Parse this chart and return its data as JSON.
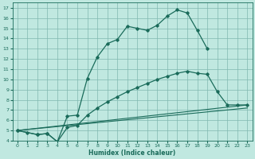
{
  "xlabel": "Humidex (Indice chaleur)",
  "xlim": [
    -0.5,
    23.5
  ],
  "ylim": [
    4,
    17.5
  ],
  "xticks": [
    0,
    1,
    2,
    3,
    4,
    5,
    6,
    7,
    8,
    9,
    10,
    11,
    12,
    13,
    14,
    15,
    16,
    17,
    18,
    19,
    20,
    21,
    22,
    23
  ],
  "yticks": [
    4,
    5,
    6,
    7,
    8,
    9,
    10,
    11,
    12,
    13,
    14,
    15,
    16,
    17
  ],
  "bg_color": "#c0e8e0",
  "grid_color": "#80b8b0",
  "line_color": "#1a6b5a",
  "line1_x": [
    0,
    1,
    2,
    3,
    4,
    5,
    6,
    7,
    8,
    9,
    10,
    11,
    12,
    13,
    14,
    15,
    16,
    17,
    18,
    19
  ],
  "line1_y": [
    5.0,
    4.8,
    4.6,
    4.7,
    3.9,
    6.4,
    6.5,
    10.1,
    12.2,
    13.5,
    13.9,
    15.2,
    15.0,
    14.8,
    15.3,
    16.2,
    16.8,
    16.5,
    14.8,
    13.0
  ],
  "line2_x": [
    0,
    2,
    3,
    4,
    5,
    6,
    7,
    8,
    9,
    10,
    11,
    12,
    13,
    14,
    15,
    16,
    17,
    18,
    19,
    20,
    21,
    22,
    23
  ],
  "line2_y": [
    5.0,
    4.6,
    4.7,
    3.9,
    5.3,
    5.5,
    6.5,
    7.2,
    7.8,
    8.3,
    8.8,
    9.2,
    9.6,
    10.0,
    10.3,
    10.6,
    10.8,
    10.6,
    10.5,
    8.8,
    7.5,
    7.5,
    7.5
  ],
  "line3_x": [
    0,
    23
  ],
  "line3_y": [
    5.0,
    7.5
  ],
  "line4_x": [
    0,
    23
  ],
  "line4_y": [
    5.0,
    7.2
  ]
}
